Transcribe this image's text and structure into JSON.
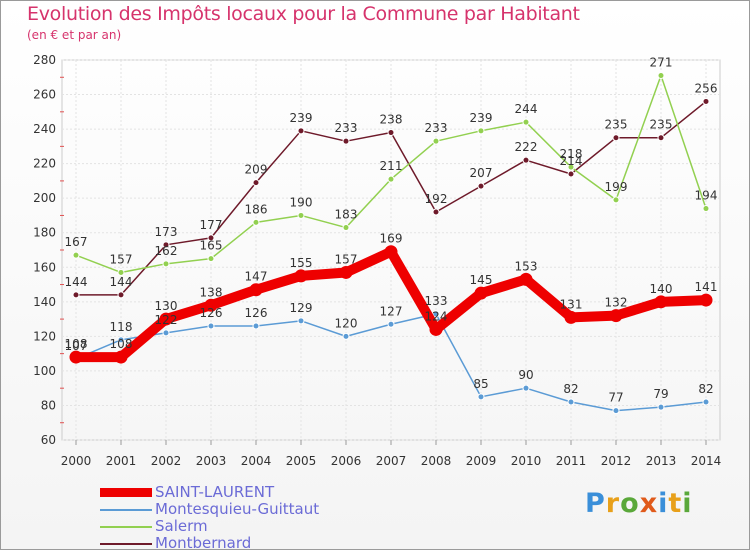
{
  "title": "Evolution des Impôts locaux pour la Commune par Habitant",
  "subtitle": "(en € et par an)",
  "brand": "Proxiti",
  "chart_data": {
    "type": "line",
    "title": "Evolution des Impôts locaux pour la Commune par Habitant",
    "ylabel": "(en € et par an)",
    "xlabel": "",
    "ylim": [
      60,
      280
    ],
    "yticks": [
      60,
      80,
      100,
      120,
      140,
      160,
      180,
      200,
      220,
      240,
      260,
      280
    ],
    "categories": [
      "2000",
      "2001",
      "2002",
      "2003",
      "2004",
      "2005",
      "2006",
      "2007",
      "2008",
      "2009",
      "2010",
      "2011",
      "2012",
      "2013",
      "2014"
    ],
    "grid": true,
    "legend_position": "bottom-left",
    "series": [
      {
        "name": "SAINT-LAURENT",
        "color": "#ee0000",
        "values": [
          108,
          108,
          130,
          138,
          147,
          155,
          157,
          169,
          124,
          145,
          153,
          131,
          132,
          140,
          141
        ]
      },
      {
        "name": "Montesquieu-Guittaut",
        "color": "#5b9bd5",
        "values": [
          107,
          118,
          122,
          126,
          126,
          129,
          120,
          127,
          133,
          85,
          90,
          82,
          77,
          79,
          82
        ]
      },
      {
        "name": "Salerm",
        "color": "#92d050",
        "values": [
          167,
          157,
          162,
          165,
          186,
          190,
          183,
          211,
          233,
          239,
          244,
          218,
          199,
          271,
          194
        ]
      },
      {
        "name": "Montbernard",
        "color": "#6e1a2a",
        "values": [
          144,
          144,
          173,
          177,
          209,
          239,
          233,
          238,
          192,
          207,
          222,
          214,
          235,
          235,
          256
        ]
      }
    ]
  }
}
